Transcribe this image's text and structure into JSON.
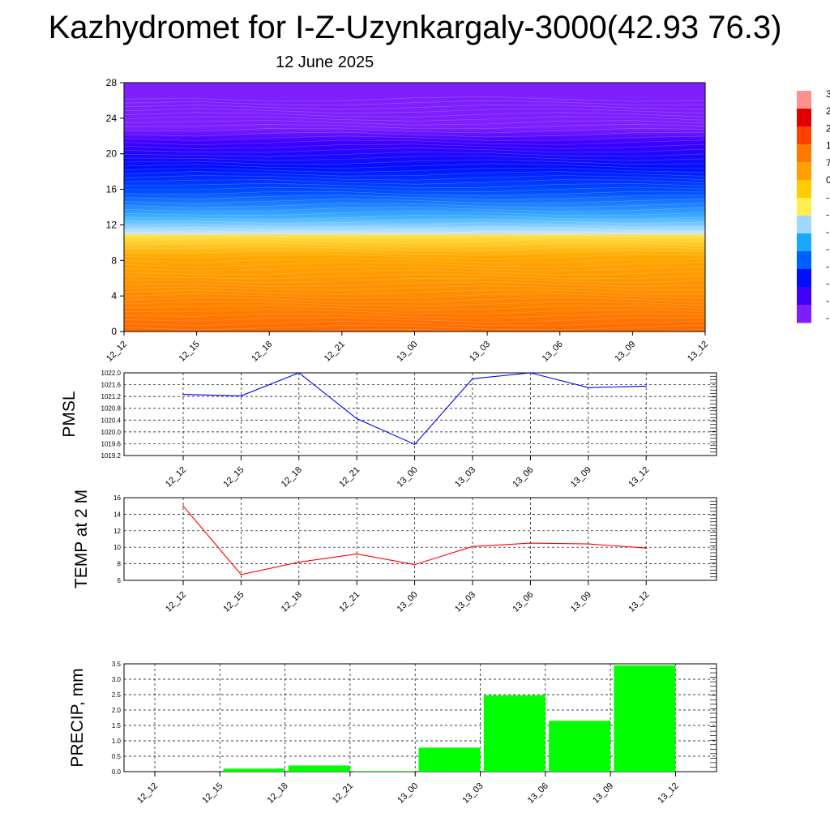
{
  "title": "Kazhydromet for I-Z-Uzynkargaly-3000(42.93 76.3)",
  "subtitle": "12 June 2025",
  "colors": {
    "pmsl_line": "#0000ff",
    "temp_line": "#ff0000",
    "precip_bar": "#00ff00"
  },
  "chart_data": [
    {
      "type": "heatmap",
      "name": "cross-section",
      "categories": [
        "12_12",
        "12_15",
        "12_18",
        "12_21",
        "13_00",
        "13_03",
        "13_06",
        "13_09",
        "13_12"
      ],
      "y_ticks": [
        "0",
        "4",
        "8",
        "12",
        "16",
        "20",
        "24",
        "28"
      ],
      "ylim": [
        0,
        28
      ],
      "palette": [
        "#7f1fff",
        "#4000ff",
        "#0010ff",
        "#0060ff",
        "#1aa8ff",
        "#a0d8ff",
        "#ffee50",
        "#ffcc00",
        "#ffa000",
        "#ff7800",
        "#ff4000",
        "#e00000",
        "#ff9090"
      ],
      "colorbar_labels": [
        "3",
        "2",
        "2",
        "1",
        "7",
        "0",
        "-",
        "-",
        "-",
        "-",
        "-",
        "-",
        "-",
        "-"
      ]
    },
    {
      "type": "line",
      "name": "pmsl",
      "ylabel": "PMSL",
      "categories": [
        "12_12",
        "12_15",
        "12_18",
        "12_21",
        "13_00",
        "13_03",
        "13_06",
        "13_09",
        "13_12"
      ],
      "y_ticks": [
        "1022.0",
        "1021.6",
        "1021.2",
        "1020.8",
        "1020.4",
        "1020.0",
        "1019.6",
        "1019.2"
      ],
      "ylim": [
        1019.2,
        1022.0
      ],
      "values": [
        1021.27,
        1021.22,
        1022.0,
        1020.45,
        1019.58,
        1021.8,
        1022.0,
        1021.5,
        1021.55
      ]
    },
    {
      "type": "line",
      "name": "temp",
      "ylabel": "TEMP at 2 M",
      "categories": [
        "12_12",
        "12_15",
        "12_18",
        "12_21",
        "13_00",
        "13_03",
        "13_06",
        "13_09",
        "13_12"
      ],
      "y_ticks": [
        "16",
        "14",
        "12",
        "10",
        "8",
        "6"
      ],
      "ylim": [
        6,
        16
      ],
      "values": [
        15.0,
        6.7,
        8.2,
        9.2,
        7.9,
        10.1,
        10.5,
        10.4,
        9.9
      ]
    },
    {
      "type": "bar",
      "name": "precip",
      "ylabel": "PRECIP, mm",
      "categories": [
        "12_12",
        "12_15",
        "12_18",
        "12_21",
        "13_00",
        "13_03",
        "13_06",
        "13_09",
        "13_12"
      ],
      "y_ticks": [
        "3.5",
        "3.0",
        "2.5",
        "2.0",
        "1.5",
        "1.0",
        "0.5",
        "0.0"
      ],
      "ylim": [
        0,
        3.5
      ],
      "values": [
        0.0,
        0.0,
        0.1,
        0.2,
        0.02,
        0.78,
        2.48,
        1.65,
        3.45
      ]
    }
  ]
}
